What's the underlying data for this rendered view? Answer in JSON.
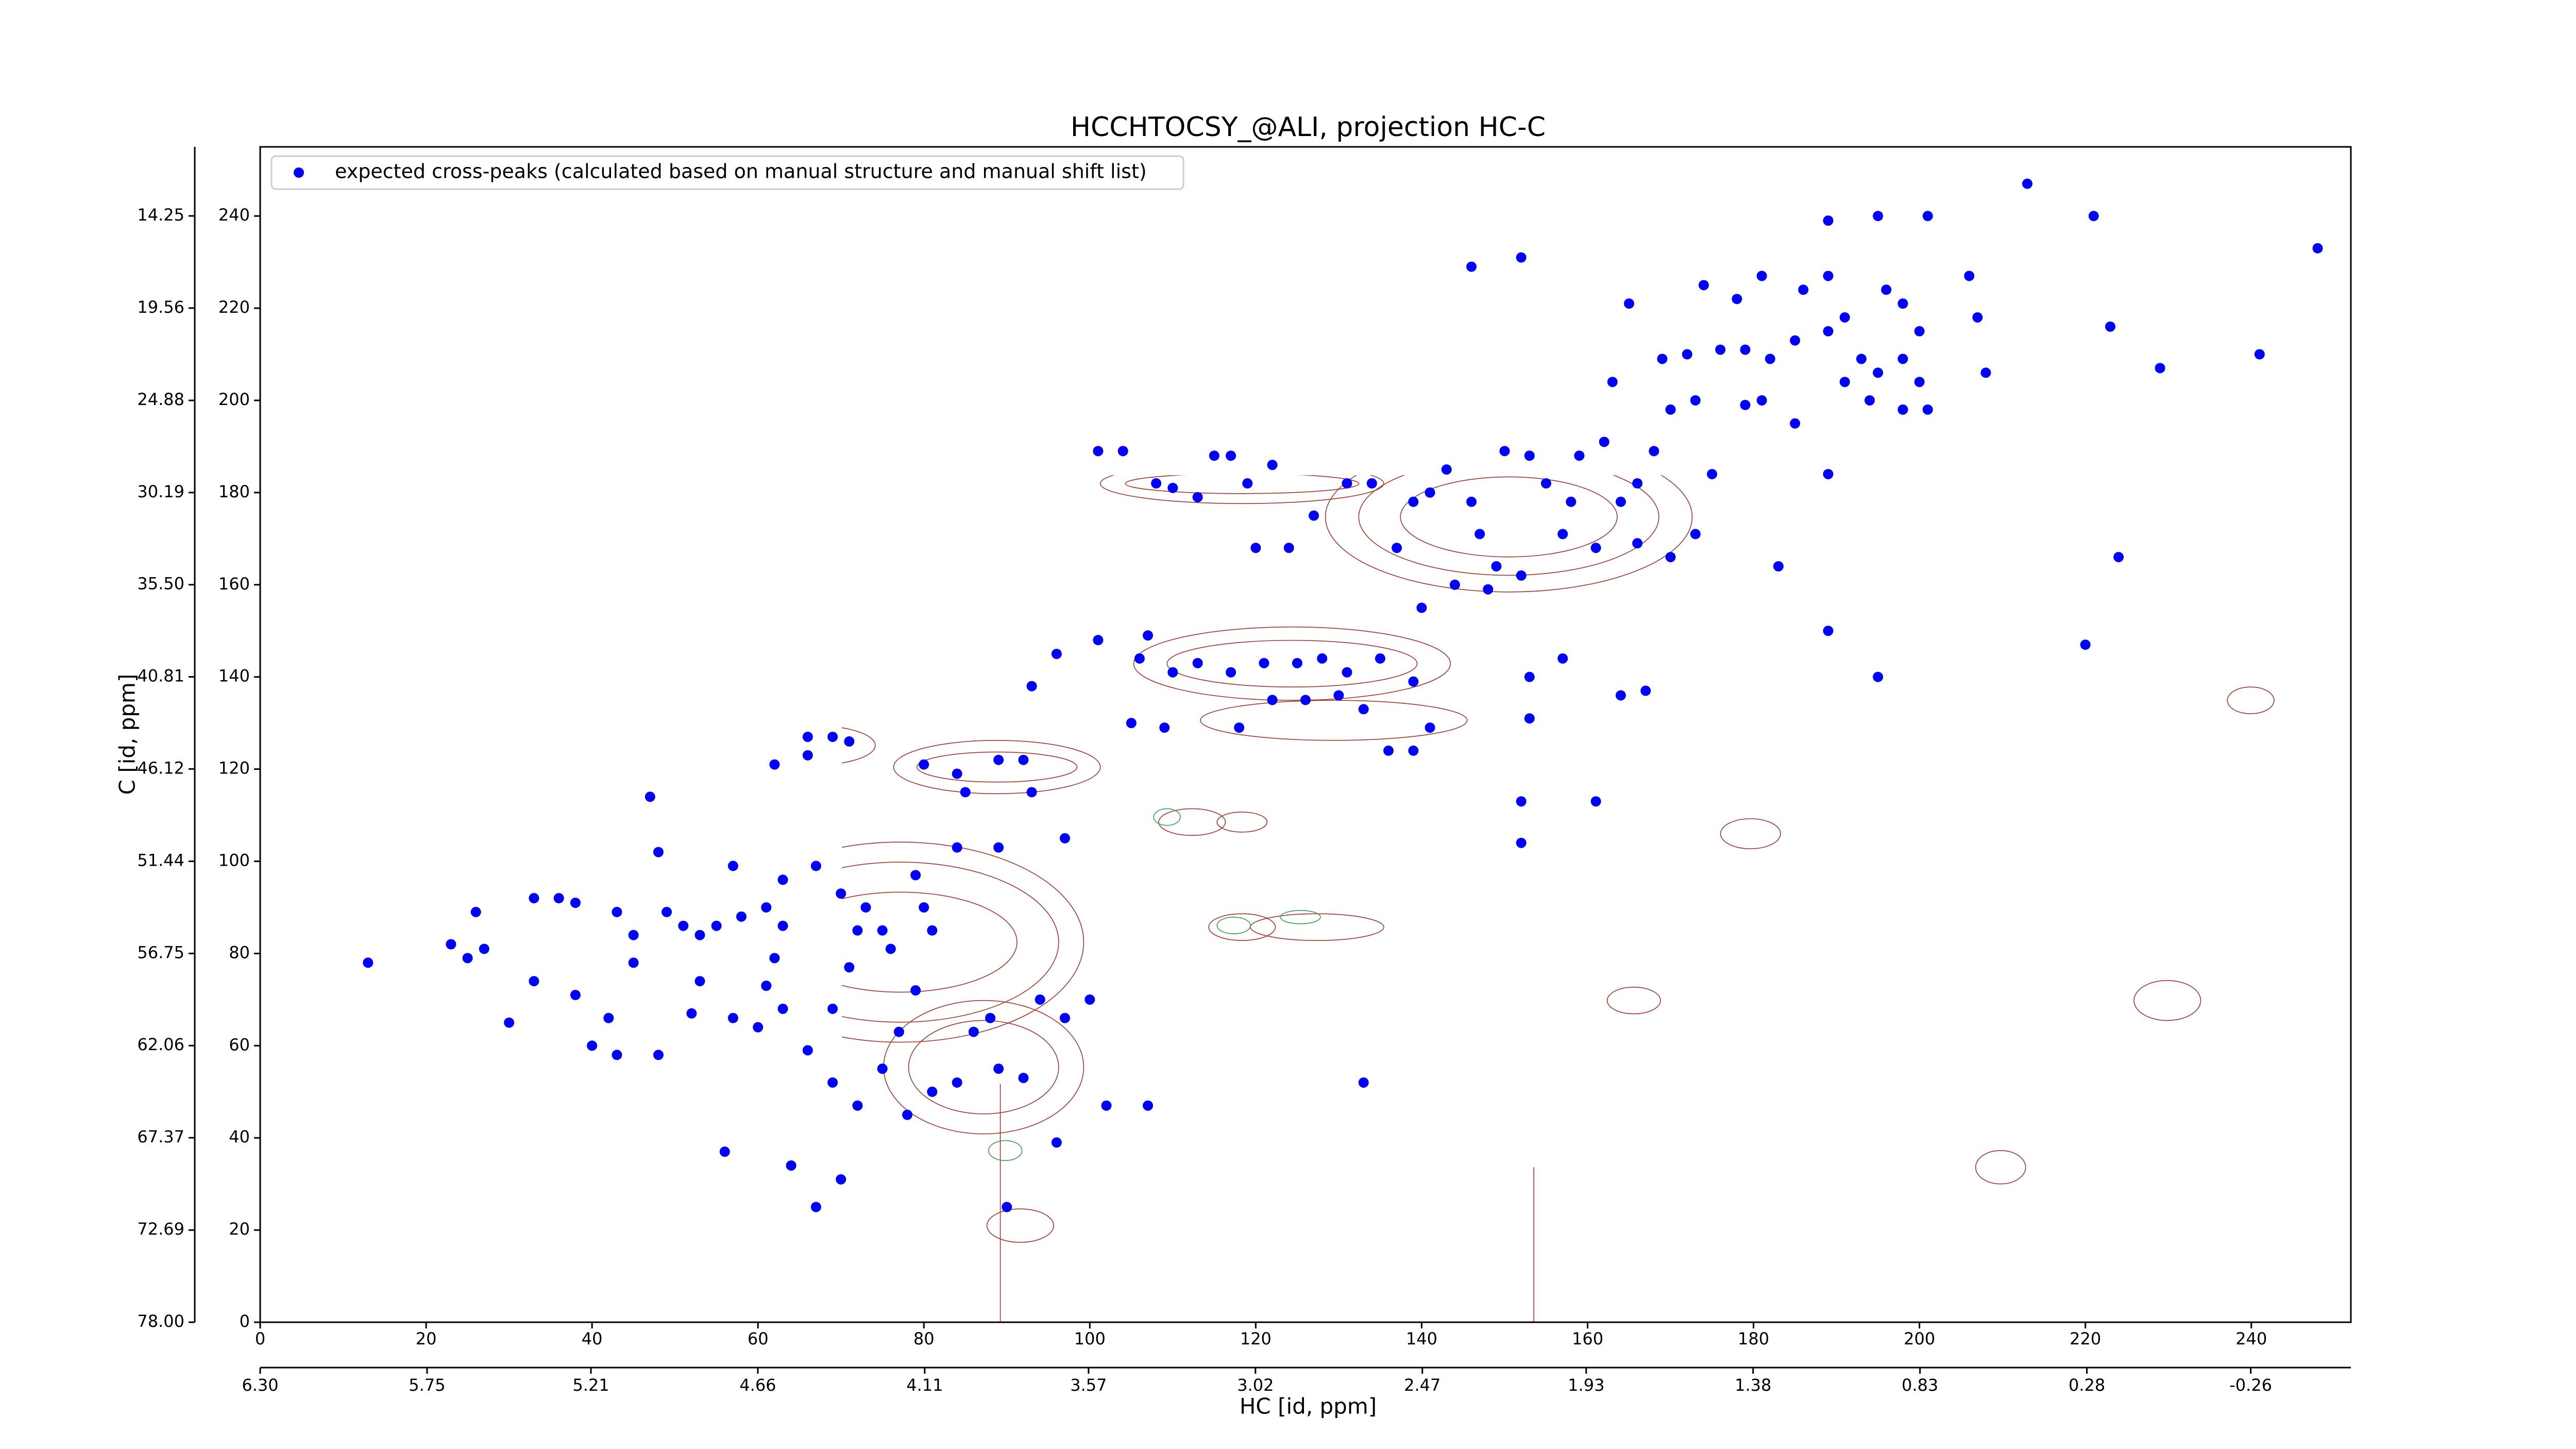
{
  "chart_data": {
    "type": "scatter",
    "title": "HCCHTOCSY_@ALI, projection HC-C",
    "xlabel": "HC [id, ppm]",
    "ylabel": "C [id, ppm]",
    "xlim": [
      0,
      252
    ],
    "ylim": [
      0,
      255
    ],
    "xticks": [
      0,
      20,
      40,
      60,
      80,
      100,
      120,
      140,
      160,
      180,
      200,
      220,
      240
    ],
    "yticks": [
      0,
      20,
      40,
      60,
      80,
      100,
      120,
      140,
      160,
      180,
      200,
      220,
      240
    ],
    "x2lim": [
      6.3,
      -0.59
    ],
    "x2ticks": [
      {
        "value": 6.3,
        "label": "6.30"
      },
      5.75,
      5.21,
      4.66,
      4.11,
      3.57,
      3.02,
      2.47,
      1.93,
      1.38,
      0.83,
      0.28,
      -0.26
    ],
    "y2lim": [
      78,
      10.27
    ],
    "y2ticks": [
      {
        "value": 78,
        "label": "78.00"
      },
      72.69,
      67.37,
      62.06,
      56.75,
      51.44,
      46.12,
      {
        "value": 40.81,
        "label": "40.81"
      },
      {
        "value": 35.5,
        "label": "35.50"
      },
      30.19,
      24.88,
      19.56,
      14.25
    ],
    "legend": "upper left",
    "series": [
      {
        "name": "expected cross-peaks (calculated based on manual structure and manual shift list)",
        "color": "#0000ff",
        "x": [
          13,
          23,
          25,
          27,
          26,
          30,
          33,
          33,
          36,
          38,
          38,
          40,
          42,
          43,
          43,
          45,
          45,
          48,
          47,
          49,
          51,
          52,
          53,
          48,
          56,
          57,
          55,
          58,
          61,
          63,
          62,
          61,
          60,
          63,
          66,
          69,
          71,
          72,
          73,
          75,
          76,
          79,
          80,
          81,
          79,
          77,
          75,
          72,
          69,
          78,
          81,
          84,
          86,
          88,
          89,
          92,
          94,
          97,
          100,
          102,
          107,
          96,
          90,
          67,
          64,
          70,
          57,
          53,
          63,
          67,
          70,
          66,
          66,
          69,
          71,
          62,
          80,
          84,
          89,
          92,
          85,
          93,
          84,
          89,
          97,
          93,
          96,
          101,
          106,
          107,
          110,
          113,
          117,
          121,
          125,
          128,
          131,
          135,
          139,
          105,
          109,
          118,
          122,
          126,
          130,
          133,
          141,
          136,
          139,
          133,
          152,
          152,
          161,
          153,
          153,
          157,
          164,
          167,
          101,
          104,
          108,
          110,
          113,
          115,
          117,
          119,
          122,
          120,
          124,
          127,
          131,
          134,
          137,
          139,
          141,
          143,
          146,
          147,
          140,
          144,
          149,
          150,
          153,
          155,
          157,
          158,
          159,
          162,
          161,
          164,
          166,
          168,
          170,
          173,
          175,
          173,
          170,
          166,
          152,
          148,
          183,
          189,
          195,
          220,
          179,
          181,
          185,
          189,
          172,
          169,
          176,
          179,
          182,
          185,
          189,
          191,
          193,
          195,
          198,
          200,
          201,
          198,
          194,
          191,
          200,
          196,
          174,
          178,
          181,
          186,
          189,
          198,
          195,
          189,
          201,
          206,
          207,
          208,
          213,
          221,
          223,
          229,
          241,
          248,
          224,
          165,
          146,
          152,
          163
        ],
        "y": [
          78,
          82,
          79,
          81,
          89,
          65,
          74,
          92,
          92,
          91,
          71,
          60,
          66,
          58,
          89,
          84,
          78,
          102,
          114,
          89,
          86,
          67,
          74,
          58,
          37,
          99,
          86,
          88,
          90,
          86,
          79,
          73,
          64,
          68,
          59,
          68,
          77,
          85,
          90,
          85,
          81,
          97,
          90,
          85,
          72,
          63,
          55,
          47,
          52,
          45,
          50,
          52,
          63,
          66,
          55,
          53,
          70,
          66,
          70,
          47,
          47,
          39,
          25,
          25,
          34,
          31,
          66,
          84,
          96,
          99,
          93,
          127,
          123,
          127,
          126,
          121,
          121,
          119,
          122,
          122,
          115,
          115,
          103,
          103,
          105,
          138,
          145,
          148,
          144,
          149,
          141,
          143,
          141,
          143,
          143,
          144,
          141,
          144,
          139,
          130,
          129,
          129,
          135,
          135,
          136,
          133,
          129,
          124,
          124,
          52,
          113,
          104,
          113,
          140,
          131,
          144,
          136,
          137,
          189,
          189,
          182,
          181,
          179,
          188,
          188,
          182,
          186,
          168,
          168,
          175,
          182,
          182,
          168,
          178,
          180,
          185,
          178,
          171,
          155,
          160,
          164,
          189,
          188,
          182,
          171,
          178,
          188,
          191,
          168,
          178,
          182,
          189,
          198,
          200,
          184,
          171,
          166,
          169,
          162,
          159,
          164,
          150,
          140,
          147,
          199,
          200,
          195,
          184,
          210,
          209,
          211,
          211,
          209,
          213,
          215,
          218,
          209,
          206,
          209,
          204,
          198,
          198,
          200,
          204,
          215,
          224,
          225,
          222,
          227,
          224,
          227,
          221,
          240,
          239,
          240,
          227,
          218,
          206,
          247,
          240,
          216,
          207,
          210,
          233,
          166,
          221,
          229,
          231,
          204
        ]
      }
    ]
  }
}
